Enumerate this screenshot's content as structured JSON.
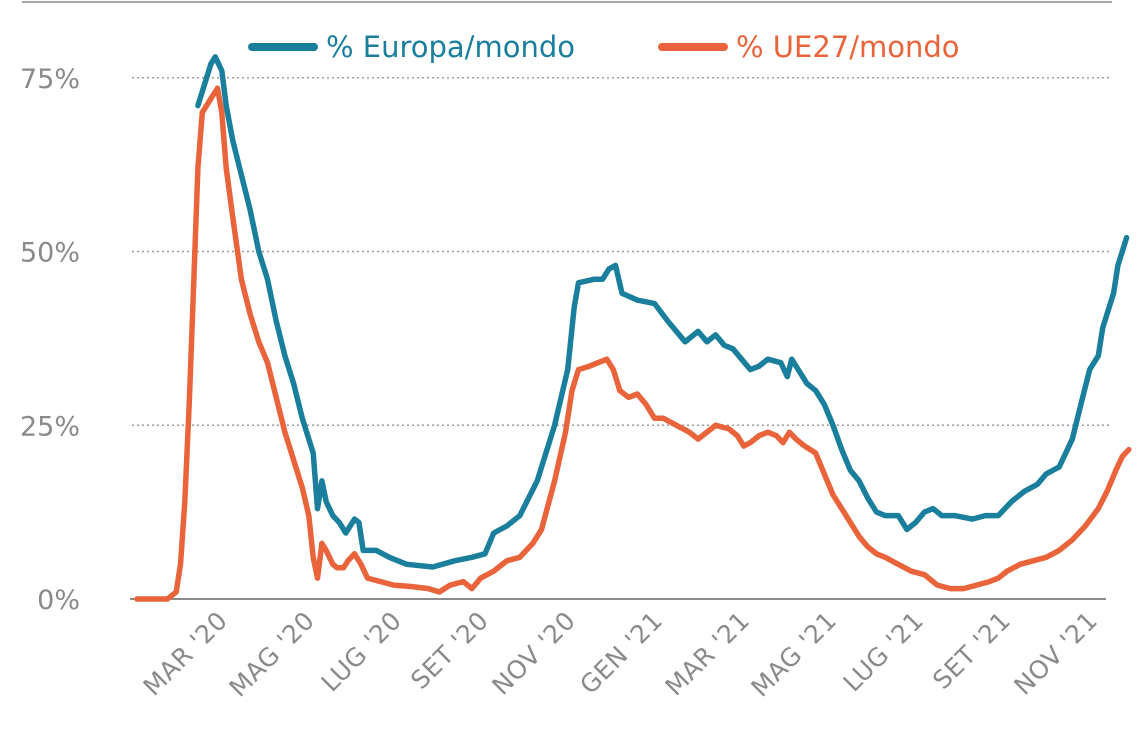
{
  "chart_data": {
    "type": "line",
    "ylim": [
      0,
      75
    ],
    "y_ticks": [
      {
        "value": 0,
        "label": "0%"
      },
      {
        "value": 25,
        "label": "25%"
      },
      {
        "value": 50,
        "label": "50%"
      },
      {
        "value": 75,
        "label": "75%"
      }
    ],
    "x_range": [
      0,
      22.8
    ],
    "x_ticks": [
      {
        "value": 2,
        "label": "MAR '20"
      },
      {
        "value": 4,
        "label": "MAG '20"
      },
      {
        "value": 6,
        "label": "LUG '20"
      },
      {
        "value": 8,
        "label": "SET '20"
      },
      {
        "value": 10,
        "label": "NOV '20"
      },
      {
        "value": 12,
        "label": "GEN '21"
      },
      {
        "value": 14,
        "label": "MAR '21"
      },
      {
        "value": 16,
        "label": "MAG '21"
      },
      {
        "value": 18,
        "label": "LUG '21"
      },
      {
        "value": 20,
        "label": "SET '21"
      },
      {
        "value": 22,
        "label": "NOV '21"
      }
    ],
    "grid": {
      "horizontal_dotted": true
    },
    "legend": {
      "position": "top"
    },
    "series": [
      {
        "name": "% Europa/mondo",
        "color": "#1a7f9c",
        "points": [
          [
            1.4,
            71
          ],
          [
            1.5,
            73
          ],
          [
            1.7,
            77
          ],
          [
            1.8,
            78
          ],
          [
            1.95,
            76
          ],
          [
            2.05,
            71
          ],
          [
            2.2,
            66
          ],
          [
            2.4,
            61
          ],
          [
            2.6,
            56
          ],
          [
            2.8,
            50
          ],
          [
            3.0,
            46
          ],
          [
            3.2,
            40
          ],
          [
            3.4,
            35
          ],
          [
            3.6,
            31
          ],
          [
            3.8,
            26
          ],
          [
            3.95,
            23
          ],
          [
            4.05,
            21
          ],
          [
            4.15,
            13
          ],
          [
            4.25,
            17
          ],
          [
            4.35,
            14
          ],
          [
            4.5,
            12
          ],
          [
            4.65,
            11
          ],
          [
            4.8,
            9.5
          ],
          [
            5.0,
            11.5
          ],
          [
            5.1,
            11
          ],
          [
            5.2,
            7
          ],
          [
            5.5,
            7
          ],
          [
            5.8,
            6
          ],
          [
            6.2,
            5
          ],
          [
            6.8,
            4.6
          ],
          [
            7.3,
            5.5
          ],
          [
            7.7,
            6
          ],
          [
            8.0,
            6.5
          ],
          [
            8.2,
            9.5
          ],
          [
            8.5,
            10.5
          ],
          [
            8.8,
            12
          ],
          [
            9.2,
            17
          ],
          [
            9.6,
            25
          ],
          [
            9.9,
            33
          ],
          [
            10.05,
            42
          ],
          [
            10.15,
            45.5
          ],
          [
            10.5,
            46
          ],
          [
            10.7,
            46
          ],
          [
            10.85,
            47.5
          ],
          [
            11.0,
            48
          ],
          [
            11.15,
            44
          ],
          [
            11.5,
            43
          ],
          [
            11.9,
            42.5
          ],
          [
            12.2,
            40
          ],
          [
            12.6,
            37
          ],
          [
            12.9,
            38.5
          ],
          [
            13.1,
            37
          ],
          [
            13.3,
            38
          ],
          [
            13.5,
            36.5
          ],
          [
            13.7,
            36
          ],
          [
            13.9,
            34.5
          ],
          [
            14.1,
            33
          ],
          [
            14.3,
            33.5
          ],
          [
            14.5,
            34.5
          ],
          [
            14.8,
            34
          ],
          [
            14.95,
            32
          ],
          [
            15.05,
            34.5
          ],
          [
            15.2,
            33
          ],
          [
            15.4,
            31
          ],
          [
            15.6,
            30
          ],
          [
            15.8,
            28
          ],
          [
            16.0,
            25
          ],
          [
            16.2,
            21.5
          ],
          [
            16.4,
            18.5
          ],
          [
            16.6,
            17
          ],
          [
            16.8,
            14.5
          ],
          [
            17.0,
            12.5
          ],
          [
            17.2,
            12
          ],
          [
            17.5,
            12
          ],
          [
            17.7,
            10
          ],
          [
            17.9,
            11
          ],
          [
            18.1,
            12.5
          ],
          [
            18.3,
            13
          ],
          [
            18.5,
            12
          ],
          [
            18.8,
            12
          ],
          [
            19.2,
            11.5
          ],
          [
            19.5,
            12
          ],
          [
            19.8,
            12
          ],
          [
            20.1,
            14
          ],
          [
            20.4,
            15.5
          ],
          [
            20.7,
            16.5
          ],
          [
            20.9,
            18
          ],
          [
            21.2,
            19
          ],
          [
            21.5,
            23
          ],
          [
            21.7,
            28
          ],
          [
            21.9,
            33
          ],
          [
            22.1,
            35
          ],
          [
            22.2,
            39
          ],
          [
            22.35,
            42
          ],
          [
            22.45,
            44
          ],
          [
            22.55,
            48
          ],
          [
            22.65,
            50
          ],
          [
            22.75,
            52
          ]
        ]
      },
      {
        "name": "% UE27/mondo",
        "color": "#e9643a",
        "points": [
          [
            0.0,
            0
          ],
          [
            0.7,
            0
          ],
          [
            0.9,
            1
          ],
          [
            1.0,
            5
          ],
          [
            1.1,
            14
          ],
          [
            1.2,
            28
          ],
          [
            1.3,
            45
          ],
          [
            1.4,
            62
          ],
          [
            1.5,
            70
          ],
          [
            1.6,
            71
          ],
          [
            1.7,
            72
          ],
          [
            1.85,
            73.5
          ],
          [
            1.95,
            70
          ],
          [
            2.05,
            62
          ],
          [
            2.2,
            55
          ],
          [
            2.4,
            46
          ],
          [
            2.6,
            41
          ],
          [
            2.8,
            37
          ],
          [
            3.0,
            34
          ],
          [
            3.2,
            29
          ],
          [
            3.4,
            24
          ],
          [
            3.6,
            20
          ],
          [
            3.8,
            16
          ],
          [
            3.95,
            12
          ],
          [
            4.05,
            6
          ],
          [
            4.15,
            3
          ],
          [
            4.25,
            8
          ],
          [
            4.35,
            7
          ],
          [
            4.5,
            5
          ],
          [
            4.6,
            4.5
          ],
          [
            4.75,
            4.5
          ],
          [
            4.85,
            5.5
          ],
          [
            5.0,
            6.5
          ],
          [
            5.15,
            5
          ],
          [
            5.3,
            3
          ],
          [
            5.6,
            2.5
          ],
          [
            5.9,
            2
          ],
          [
            6.3,
            1.8
          ],
          [
            6.7,
            1.5
          ],
          [
            6.95,
            1
          ],
          [
            7.2,
            2
          ],
          [
            7.5,
            2.5
          ],
          [
            7.7,
            1.5
          ],
          [
            7.9,
            3
          ],
          [
            8.2,
            4
          ],
          [
            8.5,
            5.5
          ],
          [
            8.8,
            6
          ],
          [
            9.1,
            8
          ],
          [
            9.3,
            10
          ],
          [
            9.6,
            17
          ],
          [
            9.85,
            24
          ],
          [
            10.0,
            30
          ],
          [
            10.15,
            33
          ],
          [
            10.4,
            33.5
          ],
          [
            10.6,
            34
          ],
          [
            10.8,
            34.5
          ],
          [
            10.95,
            33
          ],
          [
            11.1,
            30
          ],
          [
            11.3,
            29
          ],
          [
            11.5,
            29.5
          ],
          [
            11.7,
            28
          ],
          [
            11.9,
            26
          ],
          [
            12.1,
            26
          ],
          [
            12.4,
            25
          ],
          [
            12.7,
            24
          ],
          [
            12.9,
            23
          ],
          [
            13.1,
            24
          ],
          [
            13.3,
            25
          ],
          [
            13.6,
            24.5
          ],
          [
            13.8,
            23.5
          ],
          [
            13.95,
            22
          ],
          [
            14.1,
            22.5
          ],
          [
            14.3,
            23.5
          ],
          [
            14.5,
            24
          ],
          [
            14.7,
            23.5
          ],
          [
            14.85,
            22.5
          ],
          [
            15.0,
            24
          ],
          [
            15.15,
            23
          ],
          [
            15.35,
            22
          ],
          [
            15.6,
            21
          ],
          [
            15.8,
            18
          ],
          [
            16.0,
            15
          ],
          [
            16.2,
            13
          ],
          [
            16.4,
            11
          ],
          [
            16.6,
            9
          ],
          [
            16.8,
            7.5
          ],
          [
            17.0,
            6.5
          ],
          [
            17.2,
            6
          ],
          [
            17.5,
            5
          ],
          [
            17.8,
            4
          ],
          [
            18.1,
            3.5
          ],
          [
            18.4,
            2
          ],
          [
            18.7,
            1.5
          ],
          [
            19.0,
            1.5
          ],
          [
            19.3,
            2
          ],
          [
            19.6,
            2.5
          ],
          [
            19.8,
            3
          ],
          [
            20.0,
            4
          ],
          [
            20.3,
            5
          ],
          [
            20.6,
            5.5
          ],
          [
            20.9,
            6
          ],
          [
            21.2,
            7
          ],
          [
            21.5,
            8.5
          ],
          [
            21.8,
            10.5
          ],
          [
            22.1,
            13
          ],
          [
            22.3,
            15.5
          ],
          [
            22.5,
            18.5
          ],
          [
            22.65,
            20.5
          ],
          [
            22.8,
            21.5
          ]
        ]
      }
    ]
  }
}
